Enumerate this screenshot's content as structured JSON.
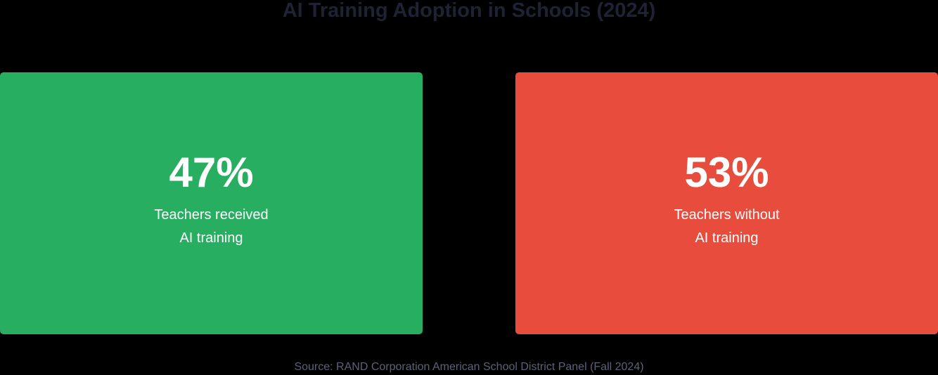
{
  "title": "AI Training Adoption in Schools (2024)",
  "cards": [
    {
      "value": "47%",
      "label_line1": "Teachers received",
      "label_line2": "AI training",
      "color": "#27ae60"
    },
    {
      "value": "53%",
      "label_line1": "Teachers without",
      "label_line2": "AI training",
      "color": "#e74c3c"
    }
  ],
  "source": "Source: RAND Corporation American School District Panel (Fall 2024)",
  "chart_data": {
    "type": "table",
    "title": "AI Training Adoption in Schools (2024)",
    "categories": [
      "Teachers received AI training",
      "Teachers without AI training"
    ],
    "values": [
      47,
      53
    ],
    "unit": "%",
    "colors": [
      "#27ae60",
      "#e74c3c"
    ],
    "source": "Source: RAND Corporation American School District Panel (Fall 2024)"
  }
}
